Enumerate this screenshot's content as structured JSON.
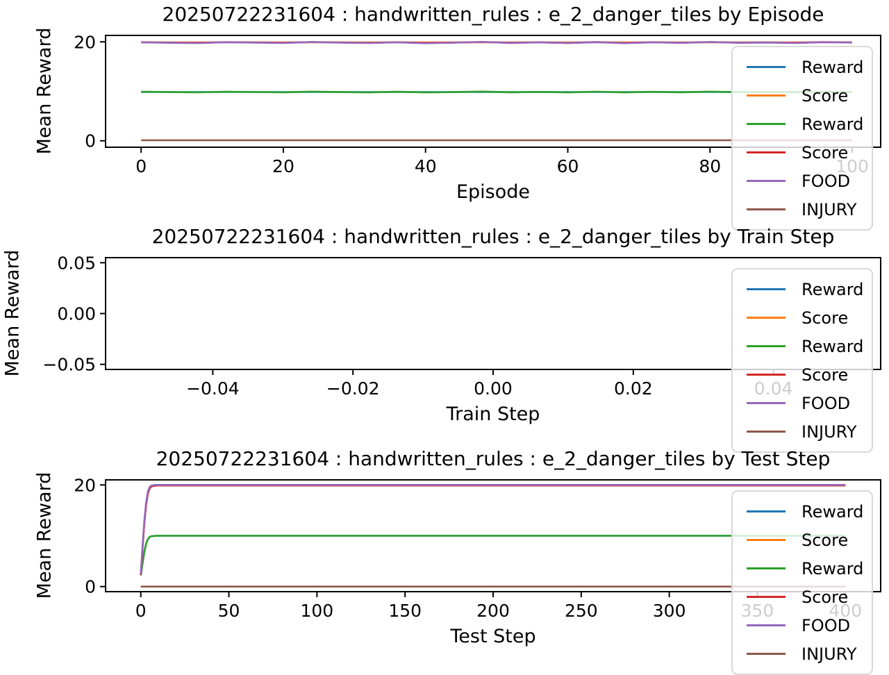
{
  "figure": {
    "background": "#ffffff"
  },
  "legend": {
    "entries": [
      {
        "label": "Reward",
        "color": "#1f77b4"
      },
      {
        "label": "Score",
        "color": "#ff7f0e"
      },
      {
        "label": "Reward",
        "color": "#2ca02c"
      },
      {
        "label": "Score",
        "color": "#d62728"
      },
      {
        "label": "FOOD",
        "color": "#9467bd"
      },
      {
        "label": "INJURY",
        "color": "#8c564b"
      }
    ]
  },
  "chart_data": [
    {
      "type": "line",
      "title": "20250722231604 : handwritten_rules : e_2_danger_tiles by Episode",
      "xlabel": "Episode",
      "ylabel": "Mean Reward",
      "xlim": [
        -5,
        104
      ],
      "ylim": [
        -1.3,
        21.3
      ],
      "xticks": [
        0,
        20,
        40,
        60,
        80,
        100
      ],
      "xtick_labels": [
        "0",
        "20",
        "40",
        "60",
        "80",
        "100"
      ],
      "yticks": [
        0,
        20
      ],
      "ytick_labels": [
        "0",
        "20"
      ],
      "grid": false,
      "legend_position": "upper right, overlapping axes",
      "series": [
        {
          "name": "Reward",
          "color": "#1f77b4",
          "x": [
            0,
            100
          ],
          "y": [
            9.86,
            9.86
          ]
        },
        {
          "name": "Score",
          "color": "#ff7f0e",
          "x": [
            0,
            100
          ],
          "y": [
            19.89,
            19.89
          ]
        },
        {
          "name": "Reward",
          "color": "#2ca02c",
          "x": [
            0,
            4,
            8,
            12,
            16,
            20,
            24,
            28,
            32,
            36,
            40,
            44,
            48,
            52,
            56,
            60,
            64,
            68,
            72,
            76,
            80,
            84,
            88,
            92,
            96,
            100
          ],
          "y": [
            9.93,
            9.85,
            9.79,
            9.92,
            9.86,
            9.8,
            9.95,
            9.85,
            9.78,
            9.91,
            9.77,
            9.84,
            9.96,
            9.8,
            9.89,
            9.78,
            9.93,
            9.77,
            9.9,
            9.81,
            9.94,
            9.83,
            9.88,
            9.79,
            9.93,
            9.86
          ]
        },
        {
          "name": "Score",
          "color": "#d62728",
          "x": [
            0,
            4,
            8,
            12,
            16,
            20,
            24,
            28,
            32,
            36,
            40,
            44,
            48,
            52,
            56,
            60,
            64,
            68,
            72,
            76,
            80,
            84,
            88,
            92,
            96,
            100
          ],
          "y": [
            19.93,
            19.86,
            19.8,
            19.94,
            19.88,
            19.82,
            19.97,
            19.87,
            19.8,
            19.93,
            19.78,
            19.86,
            19.98,
            19.82,
            19.91,
            19.79,
            19.96,
            19.78,
            19.93,
            19.83,
            19.97,
            19.85,
            19.9,
            19.81,
            19.96,
            19.89
          ]
        },
        {
          "name": "FOOD",
          "color": "#9467bd",
          "x": [
            0,
            4,
            8,
            12,
            16,
            20,
            24,
            28,
            32,
            36,
            40,
            44,
            48,
            52,
            56,
            60,
            64,
            68,
            72,
            76,
            80,
            84,
            88,
            92,
            96,
            100
          ],
          "y": [
            19.9,
            19.8,
            19.74,
            19.92,
            19.84,
            19.76,
            19.95,
            19.83,
            19.75,
            19.9,
            19.72,
            19.82,
            19.96,
            19.77,
            19.88,
            19.74,
            19.93,
            19.73,
            19.9,
            19.78,
            19.95,
            19.8,
            19.86,
            19.76,
            19.93,
            19.85
          ]
        },
        {
          "name": "INJURY",
          "color": "#8c564b",
          "x": [
            0,
            100
          ],
          "y": [
            0.1,
            0.1
          ]
        }
      ]
    },
    {
      "type": "line",
      "title": "20250722231604 : handwritten_rules : e_2_danger_tiles by Train Step",
      "xlabel": "Train Step",
      "ylabel": "Mean Reward",
      "xlim": [
        -0.0553,
        0.0553
      ],
      "ylim": [
        -0.055,
        0.055
      ],
      "xticks": [
        -0.04,
        -0.02,
        0.0,
        0.02,
        0.04
      ],
      "xtick_labels": [
        "−0.04",
        "−0.02",
        "0.00",
        "0.02",
        "0.04"
      ],
      "yticks": [
        0.05,
        0.0,
        -0.05
      ],
      "ytick_labels": [
        "0.05",
        "0.00",
        "−0.05"
      ],
      "grid": false,
      "legend_position": "upper right, overlapping axes",
      "series": [
        {
          "name": "Reward",
          "color": "#1f77b4",
          "x": [],
          "y": []
        },
        {
          "name": "Score",
          "color": "#ff7f0e",
          "x": [],
          "y": []
        },
        {
          "name": "Reward",
          "color": "#2ca02c",
          "x": [],
          "y": []
        },
        {
          "name": "Score",
          "color": "#d62728",
          "x": [],
          "y": []
        },
        {
          "name": "FOOD",
          "color": "#9467bd",
          "x": [],
          "y": []
        },
        {
          "name": "INJURY",
          "color": "#8c564b",
          "x": [],
          "y": []
        }
      ]
    },
    {
      "type": "line",
      "title": "20250722231604 : handwritten_rules : e_2_danger_tiles by Test Step",
      "xlabel": "Test Step",
      "ylabel": "Mean Reward",
      "xlim": [
        -20,
        420
      ],
      "ylim": [
        -1,
        21
      ],
      "xticks": [
        0,
        50,
        100,
        150,
        200,
        250,
        300,
        350,
        400
      ],
      "xtick_labels": [
        "0",
        "50",
        "100",
        "150",
        "200",
        "250",
        "300",
        "350",
        "400"
      ],
      "yticks": [
        0,
        20
      ],
      "ytick_labels": [
        "0",
        "20"
      ],
      "grid": false,
      "legend_position": "upper right, overlapping axes",
      "series": [
        {
          "name": "Reward",
          "color": "#1f77b4",
          "x": [
            0,
            1,
            2,
            3,
            4,
            5,
            6,
            8,
            10,
            20,
            50,
            100,
            150,
            200,
            250,
            300,
            350,
            400
          ],
          "y": [
            2.2,
            4.6,
            6.8,
            8.4,
            9.3,
            9.75,
            9.9,
            9.97,
            10.0,
            10.0,
            10.0,
            10.0,
            10.0,
            10.0,
            10.0,
            10.0,
            10.0,
            10.0
          ]
        },
        {
          "name": "Score",
          "color": "#ff7f0e",
          "x": [
            0,
            1,
            2,
            3,
            4,
            5,
            6,
            8,
            10,
            20,
            50,
            100,
            150,
            200,
            250,
            300,
            350,
            400
          ],
          "y": [
            2.3,
            7.6,
            12.5,
            16.0,
            18.3,
            19.3,
            19.7,
            19.85,
            19.9,
            19.9,
            19.9,
            19.9,
            19.9,
            19.9,
            19.9,
            19.9,
            19.9,
            19.9
          ]
        },
        {
          "name": "Reward",
          "color": "#2ca02c",
          "x": [
            0,
            1,
            2,
            3,
            4,
            5,
            6,
            8,
            10,
            20,
            50,
            100,
            150,
            200,
            250,
            300,
            350,
            400
          ],
          "y": [
            2.2,
            4.6,
            6.8,
            8.4,
            9.3,
            9.75,
            9.9,
            9.97,
            10.0,
            10.0,
            10.0,
            10.0,
            10.0,
            10.0,
            10.0,
            10.0,
            10.0,
            10.0
          ]
        },
        {
          "name": "Score",
          "color": "#d62728",
          "x": [
            0,
            1,
            2,
            3,
            4,
            5,
            6,
            8,
            10,
            20,
            50,
            100,
            150,
            200,
            250,
            300,
            350,
            400
          ],
          "y": [
            2.3,
            7.6,
            12.5,
            16.0,
            18.3,
            19.3,
            19.7,
            19.85,
            19.9,
            19.9,
            19.9,
            19.9,
            19.9,
            19.9,
            19.9,
            19.9,
            19.9,
            19.9
          ]
        },
        {
          "name": "FOOD",
          "color": "#9467bd",
          "x": [
            0,
            1,
            2,
            3,
            4,
            5,
            6,
            8,
            10,
            20,
            50,
            100,
            150,
            200,
            250,
            300,
            350,
            400
          ],
          "y": [
            2.5,
            8.0,
            13.0,
            16.5,
            18.7,
            19.6,
            19.9,
            20.0,
            20.0,
            20.0,
            20.0,
            20.0,
            20.0,
            20.0,
            20.0,
            20.0,
            20.0,
            20.0
          ]
        },
        {
          "name": "INJURY",
          "color": "#8c564b",
          "x": [
            0,
            400
          ],
          "y": [
            0.0,
            0.0
          ]
        }
      ]
    }
  ]
}
